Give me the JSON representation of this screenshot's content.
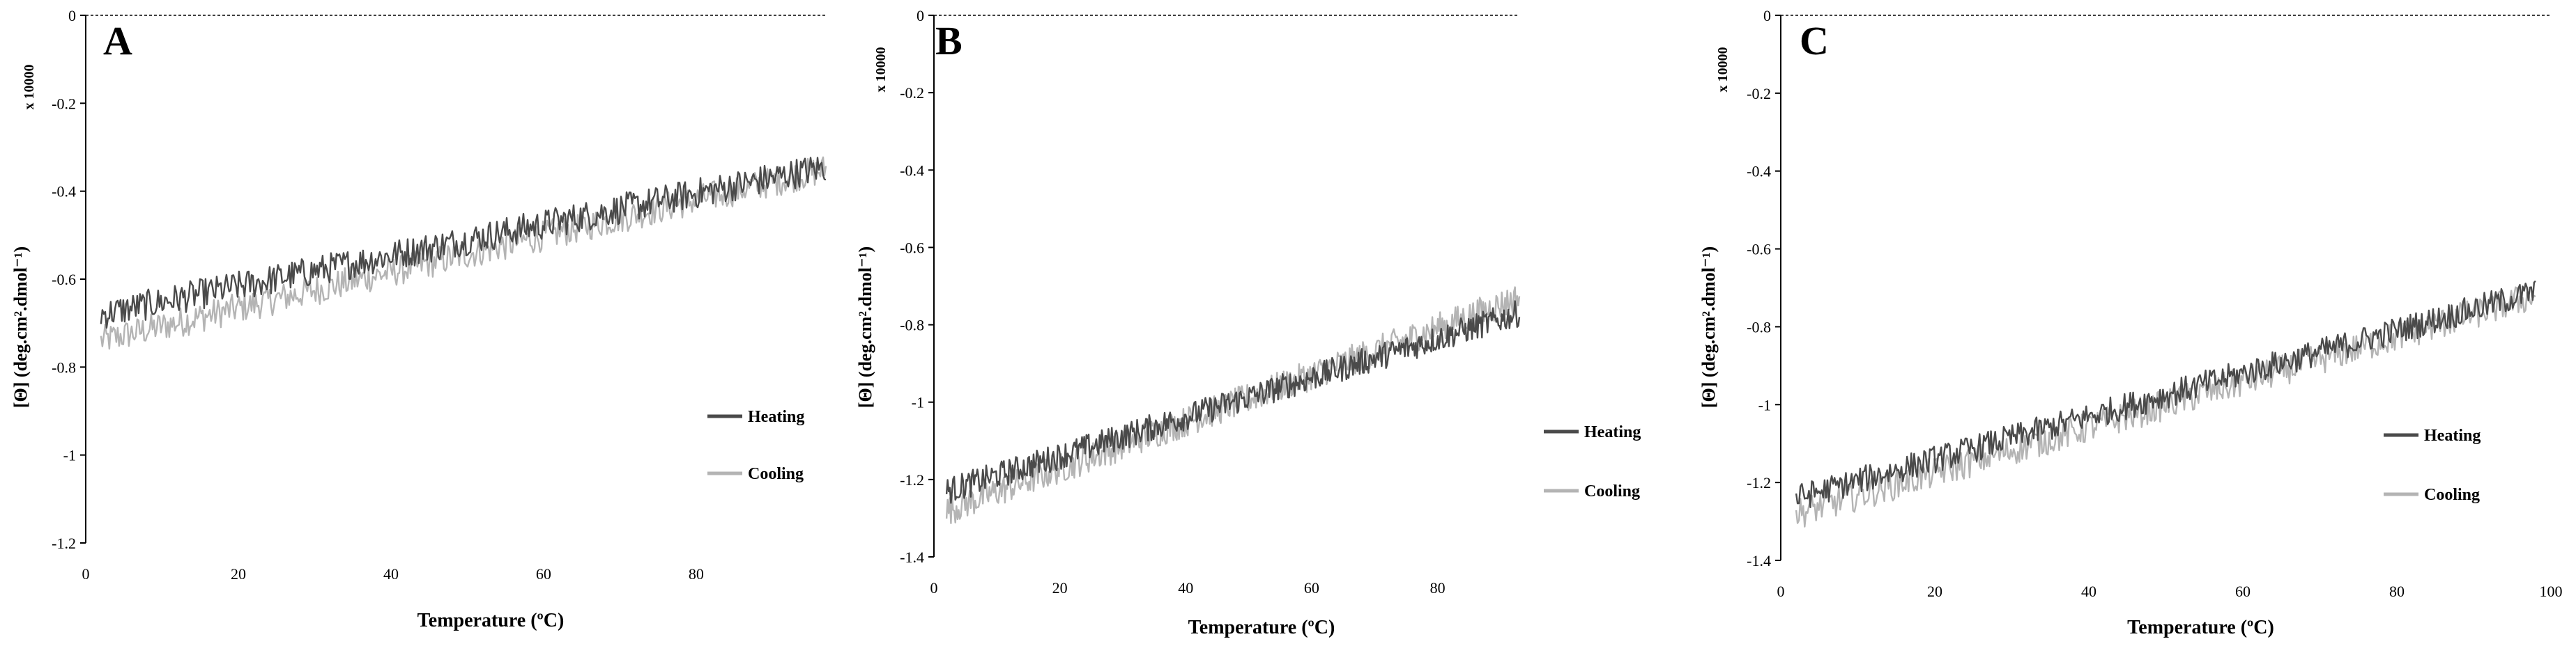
{
  "figure": {
    "panels": [
      {
        "panel_label": "A",
        "multiplier": "x 10000",
        "ylabel": "[Θ] (deg.cm².dmol⁻¹)",
        "xlabel": "Temperature (ºC)",
        "y_ticks": [
          "0",
          "-0.2",
          "-0.4",
          "-0.6",
          "-0.8",
          "-1",
          "-1.2"
        ],
        "x_ticks": [
          "0",
          "20",
          "40",
          "60",
          "80"
        ],
        "legend": [
          "Heating",
          "Cooling"
        ]
      },
      {
        "panel_label": "B",
        "multiplier": "x 10000",
        "ylabel": "[Θ] (deg.cm².dmol⁻¹)",
        "xlabel": "Temperature (ºC)",
        "y_ticks": [
          "0",
          "-0.2",
          "-0.4",
          "-0.6",
          "-0.8",
          "-1",
          "-1.2",
          "-1.4"
        ],
        "x_ticks": [
          "0",
          "20",
          "40",
          "60",
          "80"
        ],
        "legend": [
          "Heating",
          "Cooling"
        ]
      },
      {
        "panel_label": "C",
        "multiplier": "x 10000",
        "ylabel": "[Θ] (deg.cm².dmol⁻¹)",
        "xlabel": "Temperature (ºC)",
        "y_ticks": [
          "0",
          "-0.2",
          "-0.4",
          "-0.6",
          "-0.8",
          "-1",
          "-1.2",
          "-1.4"
        ],
        "x_ticks": [
          "0",
          "20",
          "40",
          "60",
          "80",
          "100"
        ],
        "legend": [
          "Heating",
          "Cooling"
        ]
      }
    ]
  },
  "colors": {
    "heating": "#4a4a4a",
    "cooling": "#b4b4b4",
    "axis": "#000000"
  },
  "chart_data": [
    {
      "type": "line",
      "panel": "A",
      "xlim": [
        0,
        97
      ],
      "ylim": [
        -1.2,
        0
      ],
      "y_multiplier": 10000,
      "series": [
        {
          "name": "Heating",
          "x_range": [
            2,
            97
          ],
          "y_start": -0.68,
          "y_end": -0.345,
          "noise": 0.035
        },
        {
          "name": "Cooling",
          "x_range": [
            2,
            97
          ],
          "y_start": -0.74,
          "y_end": -0.35,
          "noise": 0.035
        }
      ],
      "xlabel": "Temperature (ºC)",
      "ylabel": "[Θ] (deg.cm².dmol⁻¹)"
    },
    {
      "type": "line",
      "panel": "B",
      "xlim": [
        0,
        93
      ],
      "ylim": [
        -1.4,
        0
      ],
      "y_multiplier": 10000,
      "series": [
        {
          "name": "Heating",
          "x_range": [
            2,
            93
          ],
          "y_start": -1.23,
          "y_end": -0.77,
          "noise": 0.035
        },
        {
          "name": "Cooling",
          "x_range": [
            2,
            93
          ],
          "y_start": -1.28,
          "y_end": -0.73,
          "noise": 0.04
        }
      ],
      "xlabel": "Temperature (ºC)",
      "ylabel": "[Θ] (deg.cm².dmol⁻¹)"
    },
    {
      "type": "line",
      "panel": "C",
      "xlim": [
        0,
        100
      ],
      "ylim": [
        -1.4,
        0
      ],
      "y_multiplier": 10000,
      "series": [
        {
          "name": "Heating",
          "x_range": [
            2,
            98
          ],
          "y_start": -1.24,
          "y_end": -0.71,
          "noise": 0.035
        },
        {
          "name": "Cooling",
          "x_range": [
            2,
            98
          ],
          "y_start": -1.28,
          "y_end": -0.72,
          "noise": 0.04
        }
      ],
      "xlabel": "Temperature (ºC)",
      "ylabel": "[Θ] (deg.cm².dmol⁻¹)"
    }
  ]
}
